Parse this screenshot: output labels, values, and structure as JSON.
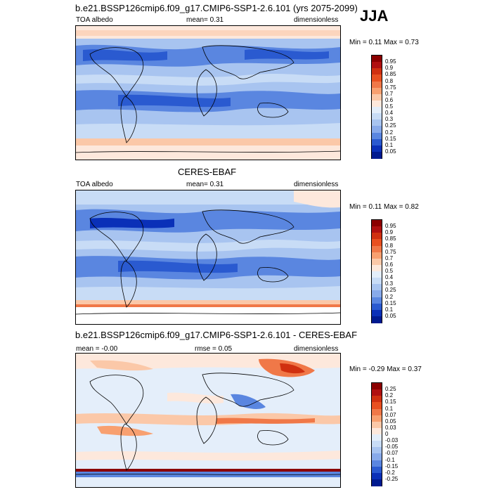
{
  "season": "JJA",
  "panels": [
    {
      "title": "b.e21.BSSP126cmip6.f09_g17.CMIP6-SSP1-2.6.101 (yrs 2075-2099)",
      "left_label": "TOA albedo",
      "mid_label": "mean=  0.31",
      "right_label": "dimensionless",
      "minmax": "Min =  0.11 Max =  0.73"
    },
    {
      "title": "CERES-EBAF",
      "left_label": "TOA albedo",
      "mid_label": "mean=  0.31",
      "right_label": "dimensionless",
      "minmax": "Min =  0.11 Max =  0.82"
    },
    {
      "title": "b.e21.BSSP126cmip6.f09_g17.CMIP6-SSP1-2.6.101 - CERES-EBAF",
      "left_label": "mean =  -0.00",
      "mid_label": "rmse =  0.05",
      "right_label": "dimensionless",
      "minmax": "Min = -0.29 Max =  0.37"
    }
  ],
  "colorbars": {
    "albedo": {
      "labels": [
        "0.95",
        "0.9",
        "0.85",
        "0.8",
        "0.75",
        "0.7",
        "0.6",
        "0.5",
        "0.4",
        "0.3",
        "0.25",
        "0.2",
        "0.15",
        "0.1",
        "0.05"
      ],
      "colors": [
        "#8b0000",
        "#b01010",
        "#d03010",
        "#e85020",
        "#f07848",
        "#f8a070",
        "#fbc8a8",
        "#fde8dc",
        "#e4eefa",
        "#c8dcf6",
        "#a8c4f0",
        "#88aaea",
        "#5a86e0",
        "#2a5ad0",
        "#0a30b8",
        "#001a90"
      ]
    },
    "diff": {
      "labels": [
        "0.25",
        "0.2",
        "0.15",
        "0.1",
        "0.07",
        "0.05",
        "0.03",
        "0",
        "-0.03",
        "-0.05",
        "-0.07",
        "-0.1",
        "-0.15",
        "-0.2",
        "-0.25"
      ],
      "colors": [
        "#8b0000",
        "#b01010",
        "#d03010",
        "#e85020",
        "#f07848",
        "#f8a070",
        "#fbc8a8",
        "#fde8dc",
        "#e4eefa",
        "#c8dcf6",
        "#a8c4f0",
        "#88aaea",
        "#5a86e0",
        "#2a5ad0",
        "#0a30b8",
        "#001a90"
      ]
    }
  }
}
